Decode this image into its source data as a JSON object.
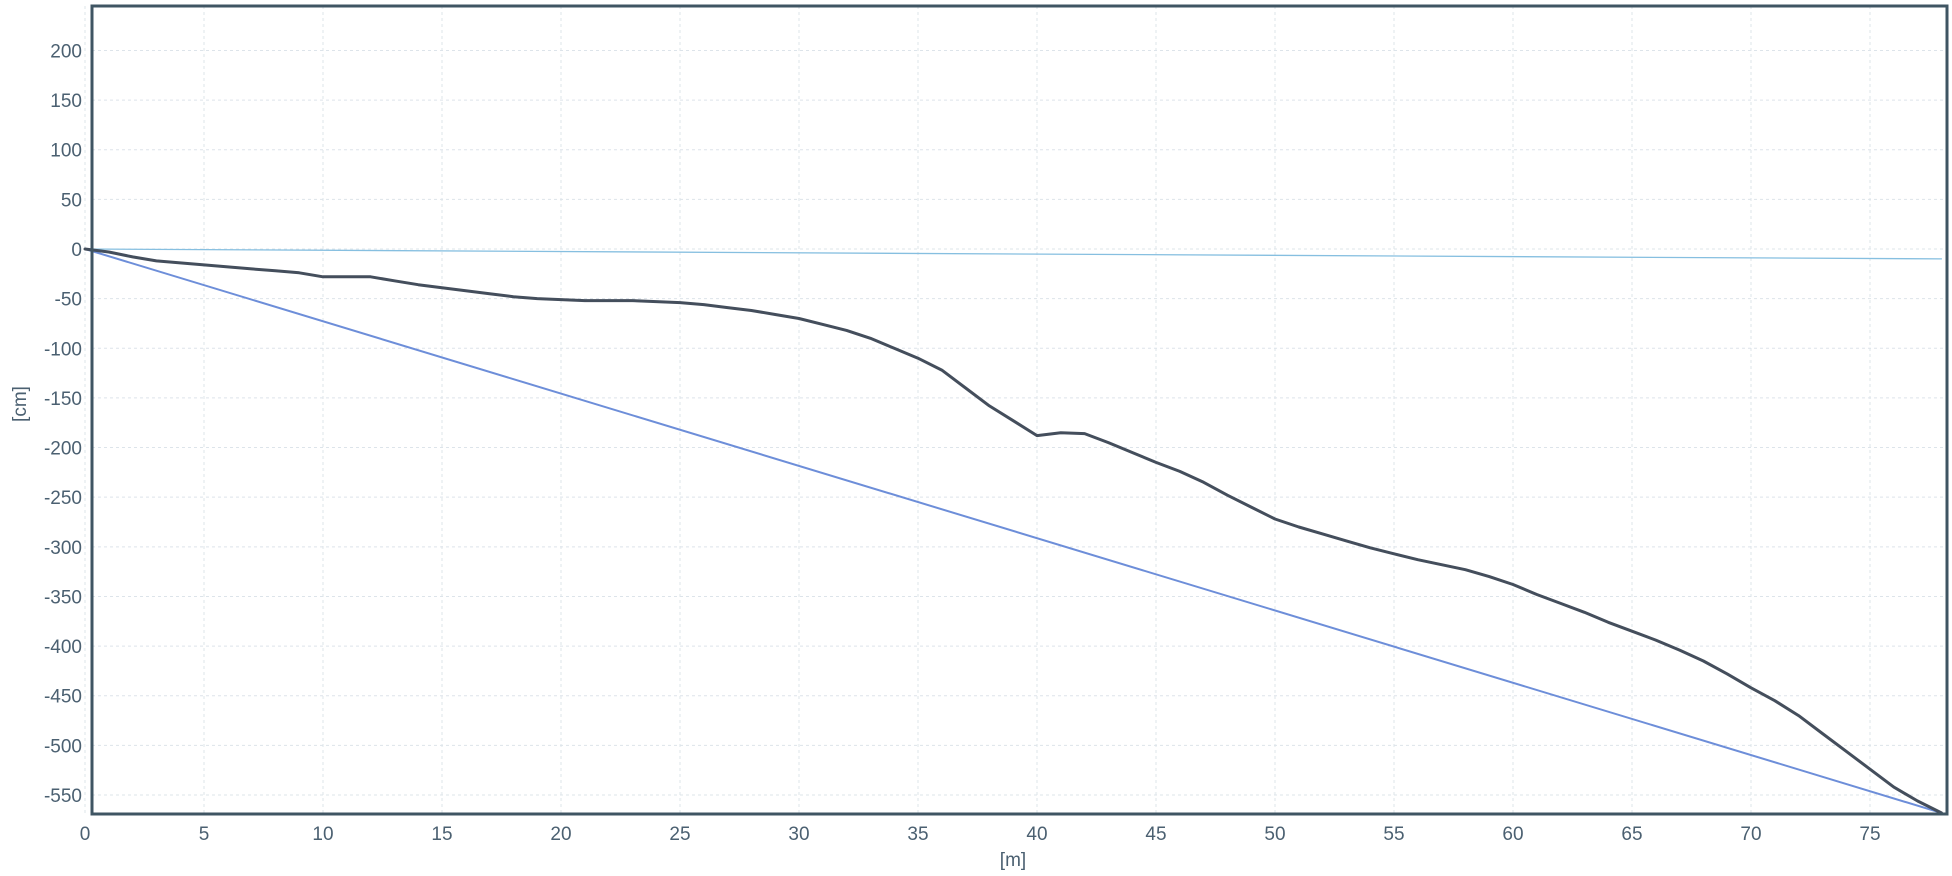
{
  "chart_data": {
    "type": "line",
    "xlabel": "[m]",
    "ylabel": "[cm]",
    "xlim": [
      0,
      78
    ],
    "ylim": [
      -565,
      245
    ],
    "x_ticks": [
      0,
      5,
      10,
      15,
      20,
      25,
      30,
      35,
      40,
      45,
      50,
      55,
      60,
      65,
      70,
      75
    ],
    "y_ticks": [
      200,
      150,
      100,
      50,
      0,
      -50,
      -100,
      -150,
      -200,
      -250,
      -300,
      -350,
      -400,
      -450,
      -500,
      -550
    ],
    "x_tick_labels": [
      "0",
      "5",
      "10",
      "15",
      "20",
      "25",
      "30",
      "35",
      "40",
      "45",
      "50",
      "55",
      "60",
      "65",
      "70",
      "75"
    ],
    "y_tick_labels": [
      "200",
      "150",
      "100",
      "50",
      "0",
      "-50",
      "-100",
      "-150",
      "-200",
      "-250",
      "-300",
      "-350",
      "-400",
      "-450",
      "-500",
      "-550"
    ],
    "grid": true,
    "legend": "none",
    "series": [
      {
        "color": "#444e5c",
        "x": [
          0,
          1,
          2,
          3,
          4,
          5,
          6,
          7,
          8,
          9,
          10,
          11,
          12,
          13,
          14,
          15,
          16,
          17,
          18,
          19,
          20,
          21,
          22,
          23,
          24,
          25,
          26,
          27,
          28,
          29,
          30,
          31,
          32,
          33,
          34,
          35,
          36,
          37,
          38,
          39,
          40,
          41,
          42,
          43,
          44,
          45,
          46,
          47,
          48,
          49,
          50,
          51,
          52,
          53,
          54,
          55,
          56,
          57,
          58,
          59,
          60,
          61,
          62,
          63,
          64,
          65,
          66,
          67,
          68,
          69,
          70,
          71,
          72,
          73,
          74,
          75,
          76,
          77,
          78
        ],
        "y": [
          0,
          -3,
          -8,
          -12,
          -14,
          -16,
          -18,
          -20,
          -22,
          -24,
          -28,
          -28,
          -28,
          -32,
          -36,
          -39,
          -42,
          -45,
          -48,
          -50,
          -51,
          -52,
          -52,
          -52,
          -53,
          -54,
          -56,
          -59,
          -62,
          -66,
          -70,
          -76,
          -82,
          -90,
          -100,
          -110,
          -122,
          -140,
          -158,
          -173,
          -188,
          -185,
          -186,
          -195,
          -205,
          -215,
          -224,
          -235,
          -248,
          -260,
          -272,
          -280,
          -287,
          -294,
          -301,
          -307,
          -313,
          -318,
          -323,
          -330,
          -338,
          -348,
          -357,
          -366,
          -376,
          -385,
          -394,
          -404,
          -415,
          -428,
          -442,
          -455,
          -470,
          -488,
          -506,
          -524,
          -542,
          -556,
          -568
        ]
      },
      {
        "color": "#6d8ed9",
        "x": [
          0,
          78
        ],
        "y": [
          0,
          -568
        ]
      },
      {
        "color": "#86bfe0",
        "x": [
          0,
          78
        ],
        "y": [
          0,
          -10
        ]
      }
    ]
  }
}
